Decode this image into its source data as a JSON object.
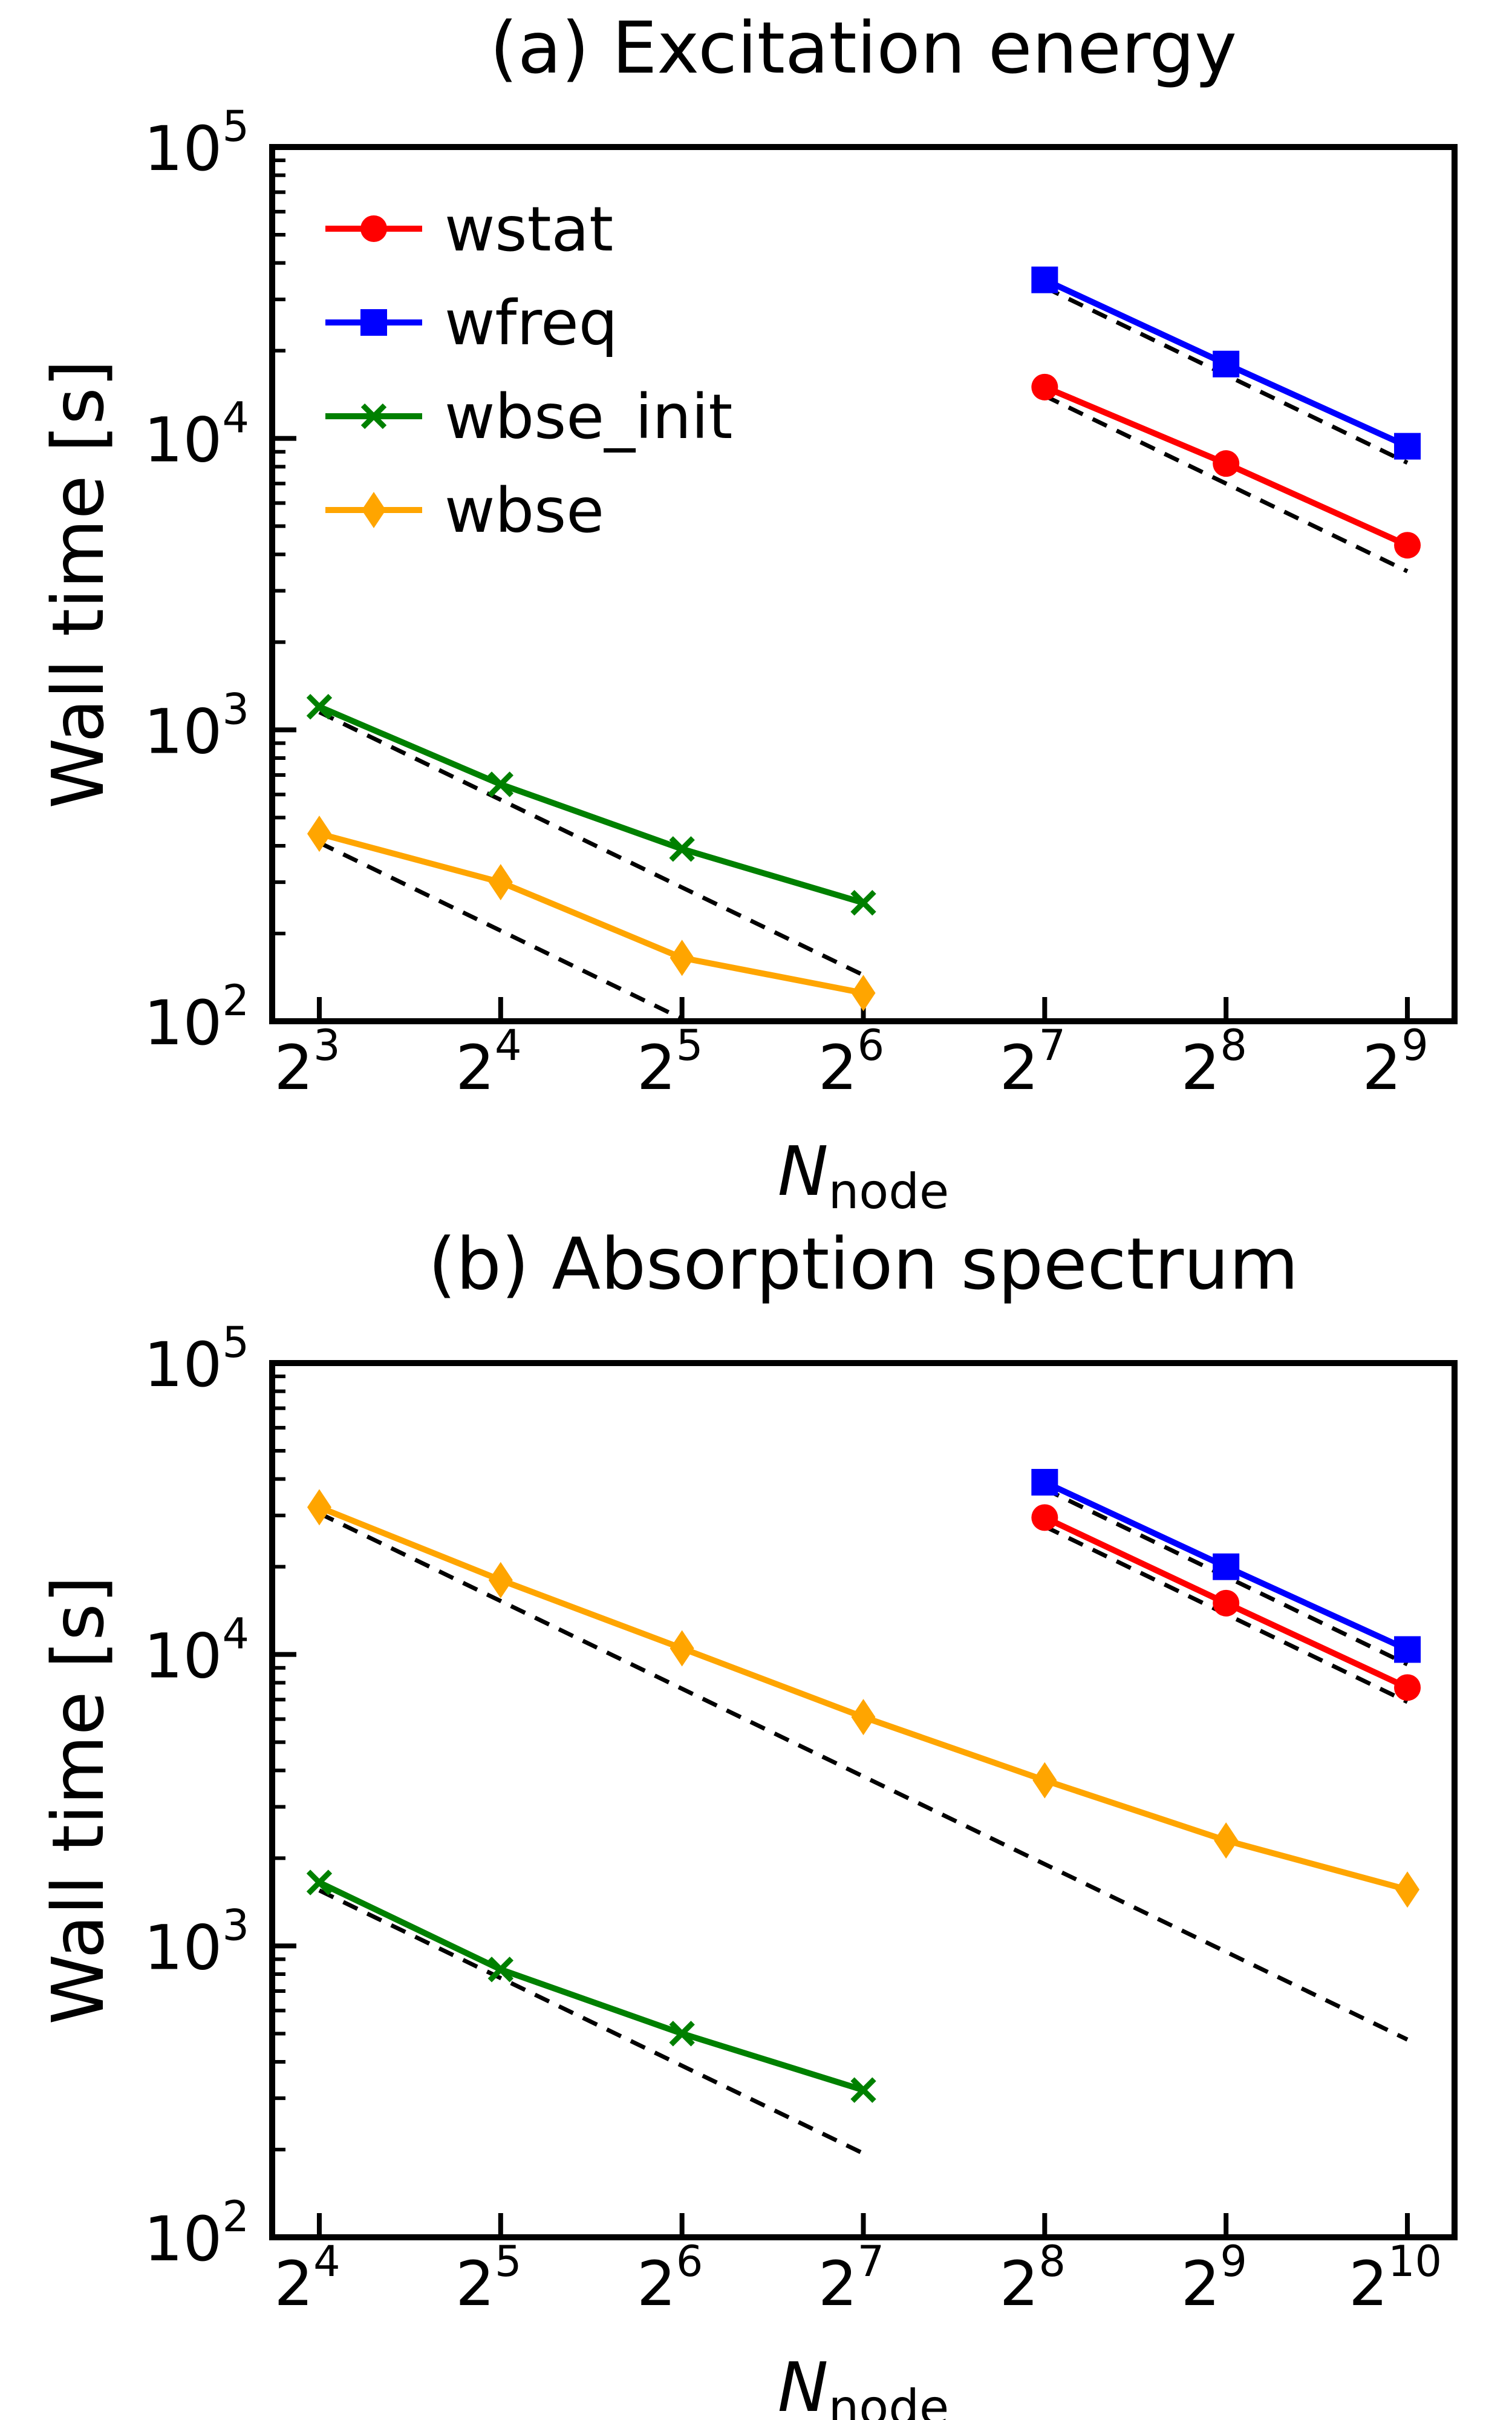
{
  "chart_data": [
    {
      "type": "line",
      "title": "(a) Excitation energy",
      "xlabel_main": "N",
      "xlabel_sub": "node",
      "ylabel": "Wall time [s]",
      "xscale": "log2",
      "yscale": "log10",
      "x_exponents": [
        3,
        4,
        5,
        6,
        7,
        8,
        9
      ],
      "xlim_exp": [
        2.74,
        9.26
      ],
      "y_tick_exponents": [
        2,
        3,
        4,
        5
      ],
      "ylim": [
        100,
        100000
      ],
      "legend": "top-left",
      "series": [
        {
          "name": "wstat",
          "color": "#ff0000",
          "marker": "circle",
          "x": [
            128,
            256,
            512
          ],
          "values": [
            15000,
            8200,
            4300
          ]
        },
        {
          "name": "wfreq",
          "color": "#0000ff",
          "marker": "square",
          "x": [
            128,
            256,
            512
          ],
          "values": [
            35000,
            18000,
            9400
          ]
        },
        {
          "name": "wbse_init",
          "color": "#008000",
          "marker": "x",
          "x": [
            8,
            16,
            32,
            64
          ],
          "values": [
            1200,
            650,
            390,
            255
          ]
        },
        {
          "name": "wbse",
          "color": "#ffa500",
          "marker": "diamond",
          "x": [
            8,
            16,
            32,
            64
          ],
          "values": [
            440,
            300,
            165,
            125
          ]
        }
      ],
      "ideal_lines": [
        {
          "x": [
            128,
            512
          ],
          "values": [
            33000,
            8250
          ]
        },
        {
          "x": [
            128,
            512
          ],
          "values": [
            14000,
            3500
          ]
        },
        {
          "x": [
            8,
            64
          ],
          "values": [
            1150,
            144
          ]
        },
        {
          "x": [
            8,
            32
          ],
          "values": [
            410,
            102
          ]
        }
      ]
    },
    {
      "type": "line",
      "title": "(b) Absorption spectrum",
      "xlabel_main": "N",
      "xlabel_sub": "node",
      "ylabel": "Wall time [s]",
      "xscale": "log2",
      "yscale": "log10",
      "x_exponents": [
        4,
        5,
        6,
        7,
        8,
        9,
        10
      ],
      "xlim_exp": [
        3.74,
        10.26
      ],
      "y_tick_exponents": [
        2,
        3,
        4,
        5
      ],
      "ylim": [
        100,
        100000
      ],
      "legend": "none",
      "series": [
        {
          "name": "wstat",
          "color": "#ff0000",
          "marker": "circle",
          "x": [
            256,
            512,
            1024
          ],
          "values": [
            29500,
            15000,
            7700
          ]
        },
        {
          "name": "wfreq",
          "color": "#0000ff",
          "marker": "square",
          "x": [
            256,
            512,
            1024
          ],
          "values": [
            39000,
            20000,
            10400
          ]
        },
        {
          "name": "wbse_init",
          "color": "#008000",
          "marker": "x",
          "x": [
            16,
            32,
            64,
            128
          ],
          "values": [
            1650,
            830,
            500,
            320
          ]
        },
        {
          "name": "wbse",
          "color": "#ffa500",
          "marker": "diamond",
          "x": [
            16,
            32,
            64,
            128,
            256,
            512,
            1024
          ],
          "values": [
            32000,
            18000,
            10500,
            6100,
            3700,
            2300,
            1560
          ]
        }
      ],
      "ideal_lines": [
        {
          "x": [
            256,
            1024
          ],
          "values": [
            37000,
            9250
          ]
        },
        {
          "x": [
            256,
            1024
          ],
          "values": [
            27500,
            6875
          ]
        },
        {
          "x": [
            16,
            1024
          ],
          "values": [
            30500,
            477
          ]
        },
        {
          "x": [
            16,
            128
          ],
          "values": [
            1550,
            194
          ]
        }
      ]
    }
  ]
}
